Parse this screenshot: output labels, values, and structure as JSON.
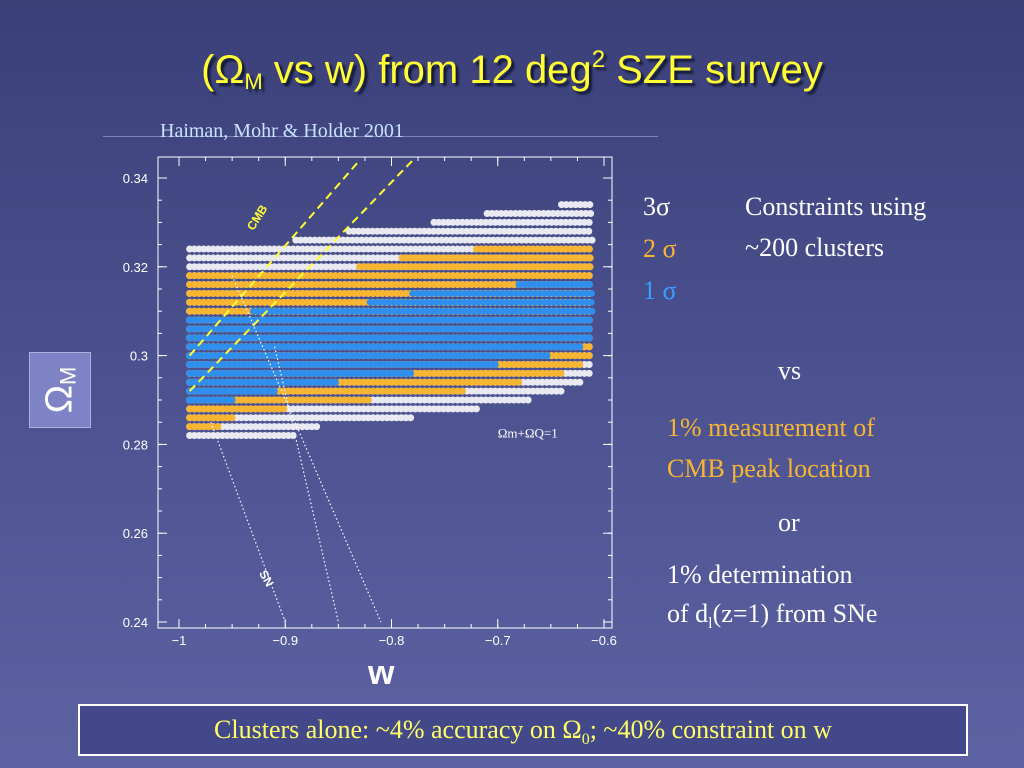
{
  "slide": {
    "title_open": "(",
    "title_omega": "Ω",
    "title_sub": "M",
    "title_mid": " vs w) from 12 deg",
    "title_sup": "2",
    "title_end": " SZE survey",
    "citation": "Haiman, Mohr & Holder 2001",
    "ylabel_main": "Ω",
    "ylabel_sub": "M",
    "xlabel": "w",
    "legend": {
      "s3": "3σ",
      "s2": "2 σ",
      "s1": "1 σ"
    },
    "constraints_line1": "Constraints using",
    "constraints_line2": "~200 clusters",
    "vs": "vs",
    "cmb_line1": "1% measurement of",
    "cmb_line2": "CMB peak location",
    "or": "or",
    "sne_line1": "1% determination",
    "sne_line2a": "of d",
    "sne_line2sub": "l",
    "sne_line2b": "(z=1) from SNe",
    "footer_a": "Clusters alone:  ~4% accuracy on Ω",
    "footer_sub": "0",
    "footer_b": "; ~40% constraint on w",
    "colors": {
      "title": "#ffff33",
      "sigma3": "#e9e9f2",
      "sigma2": "#f7b532",
      "sigma1": "#2f8fef",
      "cmb_text": "#f7b532",
      "dashed_line": "#ffff33"
    }
  },
  "chart_data": {
    "type": "scatter",
    "xlabel": "w",
    "ylabel": "ΩM",
    "xlim": [
      -1.0,
      -0.6
    ],
    "ylim": [
      0.24,
      0.34
    ],
    "xticks": [
      "−1",
      "−0.9",
      "−0.8",
      "−0.7",
      "−0.6"
    ],
    "yticks": [
      "0.24",
      "0.26",
      "0.28",
      "0.3",
      "0.32",
      "0.34"
    ],
    "annotations": [
      "Ωm+ΩQ=1",
      "CMB",
      "SN"
    ],
    "regions": {
      "sigma3": [
        [
          0.334,
          -0.64,
          -0.61
        ],
        [
          0.332,
          -0.71,
          -0.61
        ],
        [
          0.33,
          -0.76,
          -0.61
        ],
        [
          0.328,
          -0.84,
          -0.61
        ],
        [
          0.326,
          -0.89,
          -0.61
        ],
        [
          0.324,
          -0.99,
          -0.61
        ],
        [
          0.322,
          -0.99,
          -0.61
        ],
        [
          0.32,
          -0.99,
          -0.61
        ],
        [
          0.318,
          -0.99,
          -0.61
        ],
        [
          0.316,
          -0.99,
          -0.61
        ],
        [
          0.314,
          -0.99,
          -0.61
        ],
        [
          0.312,
          -0.99,
          -0.61
        ],
        [
          0.31,
          -0.99,
          -0.61
        ],
        [
          0.308,
          -0.99,
          -0.61
        ],
        [
          0.306,
          -0.99,
          -0.61
        ],
        [
          0.304,
          -0.99,
          -0.61
        ],
        [
          0.302,
          -0.99,
          -0.61
        ],
        [
          0.3,
          -0.99,
          -0.61
        ],
        [
          0.298,
          -0.99,
          -0.61
        ],
        [
          0.296,
          -0.99,
          -0.61
        ],
        [
          0.294,
          -0.99,
          -0.62
        ],
        [
          0.292,
          -0.99,
          -0.64
        ],
        [
          0.29,
          -0.99,
          -0.67
        ],
        [
          0.288,
          -0.99,
          -0.72
        ],
        [
          0.286,
          -0.99,
          -0.78
        ],
        [
          0.284,
          -0.99,
          -0.87
        ],
        [
          0.282,
          -0.99,
          -0.89
        ]
      ],
      "sigma2": [
        [
          0.324,
          -0.72,
          -0.61
        ],
        [
          0.322,
          -0.79,
          -0.61
        ],
        [
          0.32,
          -0.83,
          -0.61
        ],
        [
          0.318,
          -0.99,
          -0.61
        ],
        [
          0.316,
          -0.99,
          -0.61
        ],
        [
          0.314,
          -0.99,
          -0.61
        ],
        [
          0.312,
          -0.99,
          -0.61
        ],
        [
          0.31,
          -0.99,
          -0.61
        ],
        [
          0.308,
          -0.99,
          -0.61
        ],
        [
          0.306,
          -0.99,
          -0.61
        ],
        [
          0.304,
          -0.99,
          -0.61
        ],
        [
          0.302,
          -0.99,
          -0.61
        ],
        [
          0.3,
          -0.99,
          -0.61
        ],
        [
          0.298,
          -0.99,
          -0.62
        ],
        [
          0.296,
          -0.99,
          -0.64
        ],
        [
          0.294,
          -0.99,
          -0.68
        ],
        [
          0.292,
          -0.99,
          -0.73
        ],
        [
          0.29,
          -0.99,
          -0.82
        ],
        [
          0.288,
          -0.99,
          -0.9
        ],
        [
          0.286,
          -0.99,
          -0.95
        ],
        [
          0.284,
          -0.99,
          -0.96
        ]
      ],
      "sigma1": [
        [
          0.316,
          -0.68,
          -0.61
        ],
        [
          0.314,
          -0.78,
          -0.61
        ],
        [
          0.312,
          -0.82,
          -0.61
        ],
        [
          0.31,
          -0.93,
          -0.61
        ],
        [
          0.308,
          -0.99,
          -0.61
        ],
        [
          0.306,
          -0.99,
          -0.61
        ],
        [
          0.304,
          -0.99,
          -0.61
        ],
        [
          0.302,
          -0.99,
          -0.62
        ],
        [
          0.3,
          -0.99,
          -0.65
        ],
        [
          0.298,
          -0.99,
          -0.7
        ],
        [
          0.296,
          -0.99,
          -0.78
        ],
        [
          0.294,
          -0.99,
          -0.85
        ],
        [
          0.292,
          -0.99,
          -0.91
        ],
        [
          0.29,
          -0.99,
          -0.95
        ]
      ]
    },
    "lines": {
      "cmb_dashed": [
        [
          [
            -0.99,
            0.3
          ],
          [
            -0.83,
            0.344
          ]
        ],
        [
          [
            -0.99,
            0.292
          ],
          [
            -0.78,
            0.344
          ]
        ]
      ],
      "sn_dotted": [
        [
          [
            -0.97,
            0.285
          ],
          [
            -0.9,
            0.24
          ]
        ],
        [
          [
            -0.91,
            0.302
          ],
          [
            -0.85,
            0.24
          ]
        ],
        [
          [
            -0.95,
            0.318
          ],
          [
            -0.81,
            0.24
          ]
        ]
      ]
    }
  }
}
